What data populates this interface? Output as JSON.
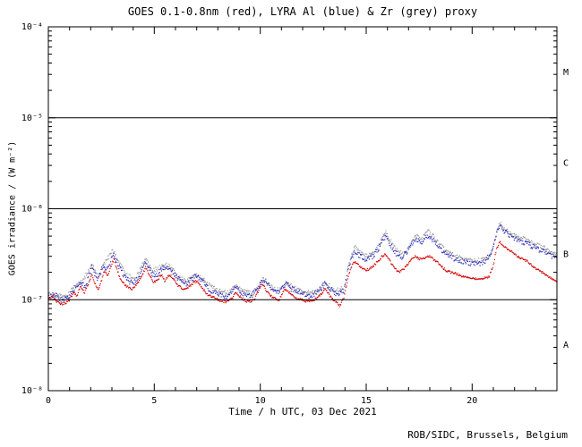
{
  "page": {
    "background": "#ffffff"
  },
  "footer": "ROB/SIDC, Brussels, Belgium",
  "chart_data": {
    "type": "scatter",
    "title": "GOES 0.1-0.8nm (red), LYRA Al (blue) & Zr (grey) proxy",
    "xlabel": "Time / h UTC, 03 Dec 2021",
    "ylabel": "GOES irradiance / (W m⁻²)",
    "xlim": [
      0,
      24
    ],
    "x_major_ticks": [
      0,
      5,
      10,
      15,
      20
    ],
    "x_minor_tick_interval": 1,
    "yscale": "log",
    "ylim": [
      1e-08,
      0.0001
    ],
    "y_ticks": [
      {
        "value": 0.0001,
        "label": "10⁻⁴"
      },
      {
        "value": 1e-05,
        "label": "10⁻⁵"
      },
      {
        "value": 1e-06,
        "label": "10⁻⁶"
      },
      {
        "value": 1e-07,
        "label": "10⁻⁷"
      },
      {
        "value": 1e-08,
        "label": "10⁻⁸"
      }
    ],
    "hlines": [
      1e-05,
      1e-06,
      1e-07
    ],
    "flare_class_labels": [
      {
        "label": "M",
        "band": [
          1e-05,
          0.0001
        ]
      },
      {
        "label": "C",
        "band": [
          1e-06,
          1e-05
        ]
      },
      {
        "label": "B",
        "band": [
          1e-07,
          1e-06
        ]
      },
      {
        "label": "A",
        "band": [
          1e-08,
          1e-07
        ]
      }
    ],
    "grid": false,
    "series": [
      {
        "key": "zr",
        "name": "LYRA Zr proxy",
        "color": "#9a9a9a",
        "points": [
          [
            0,
            1.15e-07
          ],
          [
            0.4,
            1.1e-07
          ],
          [
            0.8,
            1.08e-07
          ],
          [
            1.2,
            1.35e-07
          ],
          [
            1.6,
            1.6e-07
          ],
          [
            2.05,
            2.4e-07
          ],
          [
            2.4,
            1.75e-07
          ],
          [
            2.65,
            2.5e-07
          ],
          [
            3.05,
            3.5e-07
          ],
          [
            3.35,
            2.5e-07
          ],
          [
            3.7,
            1.85e-07
          ],
          [
            4.1,
            1.7e-07
          ],
          [
            4.6,
            2.85e-07
          ],
          [
            4.9,
            2.05e-07
          ],
          [
            5.35,
            2.3e-07
          ],
          [
            5.7,
            2.45e-07
          ],
          [
            6.05,
            1.85e-07
          ],
          [
            6.45,
            1.6e-07
          ],
          [
            6.85,
            1.8e-07
          ],
          [
            7.1,
            1.85e-07
          ],
          [
            7.5,
            1.5e-07
          ],
          [
            8.0,
            1.25e-07
          ],
          [
            8.5,
            1.18e-07
          ],
          [
            8.85,
            1.42e-07
          ],
          [
            9.3,
            1.22e-07
          ],
          [
            9.7,
            1.15e-07
          ],
          [
            10.1,
            1.65e-07
          ],
          [
            10.5,
            1.4e-07
          ],
          [
            10.9,
            1.25e-07
          ],
          [
            11.25,
            1.55e-07
          ],
          [
            11.6,
            1.35e-07
          ],
          [
            12.0,
            1.25e-07
          ],
          [
            12.4,
            1.18e-07
          ],
          [
            12.8,
            1.3e-07
          ],
          [
            13.1,
            1.55e-07
          ],
          [
            13.5,
            1.25e-07
          ],
          [
            13.95,
            1.35e-07
          ],
          [
            14.2,
            2.6e-07
          ],
          [
            14.45,
            3.8e-07
          ],
          [
            14.75,
            3.2e-07
          ],
          [
            15.05,
            3e-07
          ],
          [
            15.35,
            3.3e-07
          ],
          [
            15.65,
            4.1e-07
          ],
          [
            15.9,
            5.6e-07
          ],
          [
            16.15,
            4.4e-07
          ],
          [
            16.45,
            3.5e-07
          ],
          [
            16.75,
            3.1e-07
          ],
          [
            17.05,
            3.9e-07
          ],
          [
            17.3,
            5.2e-07
          ],
          [
            17.6,
            4.6e-07
          ],
          [
            17.9,
            5.7e-07
          ],
          [
            18.2,
            4.9e-07
          ],
          [
            18.5,
            4e-07
          ],
          [
            18.8,
            3.4e-07
          ],
          [
            19.1,
            3.1e-07
          ],
          [
            19.4,
            2.9e-07
          ],
          [
            19.7,
            2.8e-07
          ],
          [
            20.0,
            2.7e-07
          ],
          [
            20.4,
            2.7e-07
          ],
          [
            20.8,
            2.9e-07
          ],
          [
            21.05,
            4.2e-07
          ],
          [
            21.3,
            7e-07
          ],
          [
            21.5,
            6e-07
          ],
          [
            21.8,
            5.4e-07
          ],
          [
            22.1,
            5e-07
          ],
          [
            22.5,
            4.6e-07
          ],
          [
            22.9,
            4.2e-07
          ],
          [
            23.3,
            3.8e-07
          ],
          [
            23.7,
            3.4e-07
          ],
          [
            24,
            3.2e-07
          ]
        ]
      },
      {
        "key": "al",
        "name": "LYRA Al proxy",
        "color": "#2f2fbf",
        "points": [
          [
            0,
            1.1e-07
          ],
          [
            0.3,
            1.15e-07
          ],
          [
            0.6,
            1e-07
          ],
          [
            0.9,
            1.05e-07
          ],
          [
            1.2,
            1.3e-07
          ],
          [
            1.5,
            1.55e-07
          ],
          [
            1.75,
            1.4e-07
          ],
          [
            2.05,
            2.3e-07
          ],
          [
            2.3,
            1.7e-07
          ],
          [
            2.6,
            2.4e-07
          ],
          [
            2.8,
            2.1e-07
          ],
          [
            3.05,
            3.2e-07
          ],
          [
            3.3,
            2.4e-07
          ],
          [
            3.6,
            1.8e-07
          ],
          [
            3.95,
            1.5e-07
          ],
          [
            4.25,
            1.7e-07
          ],
          [
            4.6,
            2.7e-07
          ],
          [
            4.85,
            2e-07
          ],
          [
            5.15,
            1.8e-07
          ],
          [
            5.35,
            2.2e-07
          ],
          [
            5.7,
            2.3e-07
          ],
          [
            5.95,
            1.9e-07
          ],
          [
            6.25,
            1.6e-07
          ],
          [
            6.55,
            1.5e-07
          ],
          [
            6.85,
            1.75e-07
          ],
          [
            7.05,
            1.85e-07
          ],
          [
            7.3,
            1.55e-07
          ],
          [
            7.6,
            1.3e-07
          ],
          [
            8.0,
            1.15e-07
          ],
          [
            8.4,
            1.1e-07
          ],
          [
            8.85,
            1.35e-07
          ],
          [
            9.2,
            1.15e-07
          ],
          [
            9.6,
            1.1e-07
          ],
          [
            10.0,
            1.5e-07
          ],
          [
            10.15,
            1.7e-07
          ],
          [
            10.45,
            1.4e-07
          ],
          [
            10.8,
            1.2e-07
          ],
          [
            11.2,
            1.5e-07
          ],
          [
            11.5,
            1.3e-07
          ],
          [
            11.9,
            1.2e-07
          ],
          [
            12.3,
            1.1e-07
          ],
          [
            12.7,
            1.2e-07
          ],
          [
            13.05,
            1.5e-07
          ],
          [
            13.35,
            1.3e-07
          ],
          [
            13.6,
            1.15e-07
          ],
          [
            13.95,
            1.25e-07
          ],
          [
            14.2,
            2.4e-07
          ],
          [
            14.45,
            3.5e-07
          ],
          [
            14.7,
            3e-07
          ],
          [
            15.0,
            2.8e-07
          ],
          [
            15.3,
            3e-07
          ],
          [
            15.6,
            3.7e-07
          ],
          [
            15.9,
            5e-07
          ],
          [
            16.15,
            4e-07
          ],
          [
            16.4,
            3.2e-07
          ],
          [
            16.7,
            2.9e-07
          ],
          [
            17.0,
            3.6e-07
          ],
          [
            17.3,
            4.7e-07
          ],
          [
            17.6,
            4.2e-07
          ],
          [
            17.9,
            5.1e-07
          ],
          [
            18.15,
            4.5e-07
          ],
          [
            18.45,
            3.7e-07
          ],
          [
            18.75,
            3.2e-07
          ],
          [
            19.05,
            2.9e-07
          ],
          [
            19.35,
            2.7e-07
          ],
          [
            19.65,
            2.6e-07
          ],
          [
            19.95,
            2.5e-07
          ],
          [
            20.3,
            2.5e-07
          ],
          [
            20.6,
            2.6e-07
          ],
          [
            20.9,
            3.3e-07
          ],
          [
            21.15,
            5.5e-07
          ],
          [
            21.3,
            6.5e-07
          ],
          [
            21.5,
            5.7e-07
          ],
          [
            21.8,
            5e-07
          ],
          [
            22.1,
            4.6e-07
          ],
          [
            22.4,
            4.3e-07
          ],
          [
            22.7,
            4e-07
          ],
          [
            23.0,
            3.7e-07
          ],
          [
            23.3,
            3.4e-07
          ],
          [
            23.65,
            3.1e-07
          ],
          [
            24,
            2.9e-07
          ]
        ]
      },
      {
        "key": "goes",
        "name": "GOES 0.1-0.8nm",
        "color": "#d40000",
        "points": [
          [
            0,
            1e-07
          ],
          [
            0.2,
            1.1e-07
          ],
          [
            0.4,
            9.5e-08
          ],
          [
            0.6,
            9e-08
          ],
          [
            0.8,
            9.2e-08
          ],
          [
            1.0,
            1e-07
          ],
          [
            1.2,
            1.2e-07
          ],
          [
            1.35,
            1.1e-07
          ],
          [
            1.5,
            1.4e-07
          ],
          [
            1.7,
            1.2e-07
          ],
          [
            1.9,
            1.5e-07
          ],
          [
            2.05,
            1.9e-07
          ],
          [
            2.2,
            1.5e-07
          ],
          [
            2.35,
            1.3e-07
          ],
          [
            2.5,
            1.6e-07
          ],
          [
            2.65,
            2.1e-07
          ],
          [
            2.8,
            1.8e-07
          ],
          [
            3.0,
            2.5e-07
          ],
          [
            3.1,
            2.8e-07
          ],
          [
            3.25,
            2.1e-07
          ],
          [
            3.45,
            1.6e-07
          ],
          [
            3.7,
            1.4e-07
          ],
          [
            3.95,
            1.3e-07
          ],
          [
            4.2,
            1.5e-07
          ],
          [
            4.45,
            1.9e-07
          ],
          [
            4.6,
            2.3e-07
          ],
          [
            4.75,
            1.9e-07
          ],
          [
            4.95,
            1.55e-07
          ],
          [
            5.15,
            1.65e-07
          ],
          [
            5.35,
            1.9e-07
          ],
          [
            5.5,
            1.6e-07
          ],
          [
            5.7,
            1.9e-07
          ],
          [
            5.9,
            1.7e-07
          ],
          [
            6.1,
            1.45e-07
          ],
          [
            6.35,
            1.3e-07
          ],
          [
            6.6,
            1.35e-07
          ],
          [
            6.85,
            1.55e-07
          ],
          [
            7.05,
            1.6e-07
          ],
          [
            7.25,
            1.35e-07
          ],
          [
            7.5,
            1.15e-07
          ],
          [
            7.8,
            1.05e-07
          ],
          [
            8.1,
            9.8e-08
          ],
          [
            8.4,
            9.5e-08
          ],
          [
            8.7,
            1.05e-07
          ],
          [
            8.85,
            1.2e-07
          ],
          [
            9.1,
            1.05e-07
          ],
          [
            9.4,
            9.5e-08
          ],
          [
            9.7,
            9.8e-08
          ],
          [
            9.95,
            1.3e-07
          ],
          [
            10.1,
            1.5e-07
          ],
          [
            10.3,
            1.25e-07
          ],
          [
            10.6,
            1.05e-07
          ],
          [
            10.9,
            1e-07
          ],
          [
            11.15,
            1.3e-07
          ],
          [
            11.35,
            1.2e-07
          ],
          [
            11.65,
            1.05e-07
          ],
          [
            11.95,
            1e-07
          ],
          [
            12.25,
            9.5e-08
          ],
          [
            12.55,
            1e-07
          ],
          [
            12.85,
            1.15e-07
          ],
          [
            13.05,
            1.3e-07
          ],
          [
            13.3,
            1.1e-07
          ],
          [
            13.55,
            9.5e-08
          ],
          [
            13.75,
            8.5e-08
          ],
          [
            13.95,
            1.05e-07
          ],
          [
            14.15,
            1.8e-07
          ],
          [
            14.35,
            2.5e-07
          ],
          [
            14.5,
            2.6e-07
          ],
          [
            14.7,
            2.3e-07
          ],
          [
            14.95,
            2.1e-07
          ],
          [
            15.2,
            2.2e-07
          ],
          [
            15.45,
            2.5e-07
          ],
          [
            15.7,
            2.9e-07
          ],
          [
            15.9,
            3.2e-07
          ],
          [
            16.1,
            2.7e-07
          ],
          [
            16.35,
            2.2e-07
          ],
          [
            16.55,
            2e-07
          ],
          [
            16.8,
            2.2e-07
          ],
          [
            17.05,
            2.6e-07
          ],
          [
            17.3,
            3e-07
          ],
          [
            17.55,
            2.8e-07
          ],
          [
            17.8,
            2.9e-07
          ],
          [
            18.0,
            3e-07
          ],
          [
            18.25,
            2.7e-07
          ],
          [
            18.5,
            2.4e-07
          ],
          [
            18.75,
            2.1e-07
          ],
          [
            19.0,
            2e-07
          ],
          [
            19.3,
            1.9e-07
          ],
          [
            19.6,
            1.8e-07
          ],
          [
            19.9,
            1.75e-07
          ],
          [
            20.2,
            1.7e-07
          ],
          [
            20.5,
            1.7e-07
          ],
          [
            20.8,
            1.8e-07
          ],
          [
            21.0,
            2.4e-07
          ],
          [
            21.15,
            3.6e-07
          ],
          [
            21.3,
            4.3e-07
          ],
          [
            21.45,
            4e-07
          ],
          [
            21.65,
            3.6e-07
          ],
          [
            21.9,
            3.3e-07
          ],
          [
            22.15,
            3e-07
          ],
          [
            22.4,
            2.8e-07
          ],
          [
            22.65,
            2.6e-07
          ],
          [
            22.9,
            2.3e-07
          ],
          [
            23.15,
            2.1e-07
          ],
          [
            23.45,
            1.9e-07
          ],
          [
            23.75,
            1.7e-07
          ],
          [
            24,
            1.6e-07
          ]
        ]
      }
    ]
  }
}
